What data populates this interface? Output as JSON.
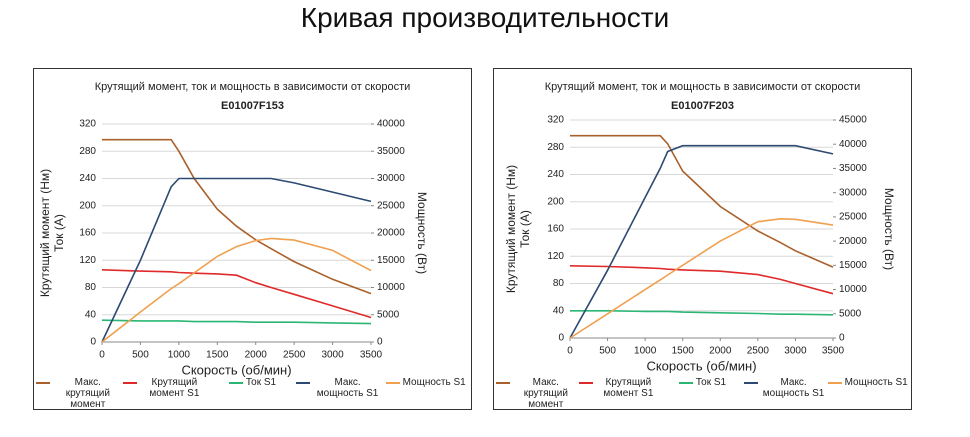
{
  "page_title": "Кривая производительности",
  "chart_data": [
    {
      "type": "line",
      "title": "Крутящий момент, ток и мощность в зависимости от скорости",
      "subtitle": "E01007F153",
      "xlabel": "Скорость (об/мин)",
      "ylabel": [
        "Крутящий момент (Нм)",
        "Ток (А)"
      ],
      "y2label": "Мощность (Вт)",
      "xlim": [
        0,
        3500
      ],
      "xticks": [
        0,
        500,
        1000,
        1500,
        2000,
        2500,
        3000,
        3500
      ],
      "ylim": [
        0,
        320
      ],
      "yticks": [
        0,
        40,
        80,
        120,
        160,
        200,
        240,
        280,
        320
      ],
      "y2lim": [
        0,
        40000
      ],
      "y2ticks": [
        0,
        5000,
        10000,
        15000,
        20000,
        25000,
        30000,
        35000,
        40000
      ],
      "grid": true,
      "x": [
        0,
        500,
        900,
        1000,
        1200,
        1500,
        1750,
        2000,
        2200,
        2500,
        3000,
        3500
      ],
      "series": [
        {
          "name": "Макс. крутящий момент",
          "color": "#a9602a",
          "values": [
            297,
            297,
            297,
            280,
            240,
            195,
            170,
            150,
            137,
            118,
            92,
            71
          ]
        },
        {
          "name": "Крутящий момент S1",
          "color": "#e02a2a",
          "values": [
            106,
            104,
            103,
            102,
            101,
            100,
            98,
            87,
            80,
            70,
            53,
            36
          ]
        },
        {
          "name": "Ток S1",
          "color": "#2bb673",
          "values": [
            32,
            31,
            31,
            31,
            30,
            30,
            30,
            29,
            29,
            29,
            28,
            27
          ]
        },
        {
          "name": "Макс. мощность S1",
          "color": "#2c4a72",
          "axis": "y2",
          "values": [
            0,
            15000,
            28500,
            30000,
            30000,
            30000,
            30000,
            30000,
            30000,
            29200,
            27500,
            25800
          ]
        },
        {
          "name": "Мощность S1",
          "color": "#f0a050",
          "axis": "y2",
          "values": [
            0,
            5500,
            9800,
            10700,
            12700,
            15700,
            17500,
            18600,
            19000,
            18700,
            16800,
            13100
          ]
        }
      ]
    },
    {
      "type": "line",
      "title": "Крутящий момент, ток и мощность в зависимости от скорости",
      "subtitle": "E01007F203",
      "xlabel": "Скорость (об/мин)",
      "ylabel": [
        "Крутящий момент (Нм)",
        "Ток (А)"
      ],
      "y2label": "Мощность (Вт)",
      "xlim": [
        0,
        3500
      ],
      "xticks": [
        0,
        500,
        1000,
        1500,
        2000,
        2500,
        3000,
        3500
      ],
      "ylim": [
        0,
        320
      ],
      "yticks": [
        0,
        40,
        80,
        120,
        160,
        200,
        240,
        280,
        320
      ],
      "y2lim": [
        0,
        45000
      ],
      "y2ticks": [
        0,
        5000,
        10000,
        15000,
        20000,
        25000,
        30000,
        35000,
        40000,
        45000
      ],
      "grid": true,
      "x": [
        0,
        500,
        1000,
        1200,
        1300,
        1500,
        2000,
        2500,
        2800,
        3000,
        3500
      ],
      "series": [
        {
          "name": "Макс. крутящий момент",
          "color": "#a9602a",
          "values": [
            297,
            297,
            297,
            297,
            285,
            245,
            193,
            157,
            140,
            128,
            104
          ]
        },
        {
          "name": "Крутящий момент S1",
          "color": "#e02a2a",
          "values": [
            106,
            105,
            103,
            102,
            101,
            100,
            98,
            93,
            86,
            80,
            65
          ]
        },
        {
          "name": "Ток S1",
          "color": "#2bb673",
          "values": [
            40,
            40,
            39,
            39,
            39,
            38,
            37,
            36,
            35,
            35,
            34
          ]
        },
        {
          "name": "Макс. мощность S1",
          "color": "#2c4a72",
          "axis": "y2",
          "values": [
            0,
            14000,
            29000,
            35000,
            38500,
            39700,
            39700,
            39700,
            39700,
            39700,
            38000
          ]
        },
        {
          "name": "Мощность S1",
          "color": "#f0a050",
          "axis": "y2",
          "values": [
            0,
            5000,
            10000,
            12000,
            13000,
            15000,
            20000,
            24000,
            24600,
            24500,
            23300
          ]
        }
      ]
    }
  ]
}
